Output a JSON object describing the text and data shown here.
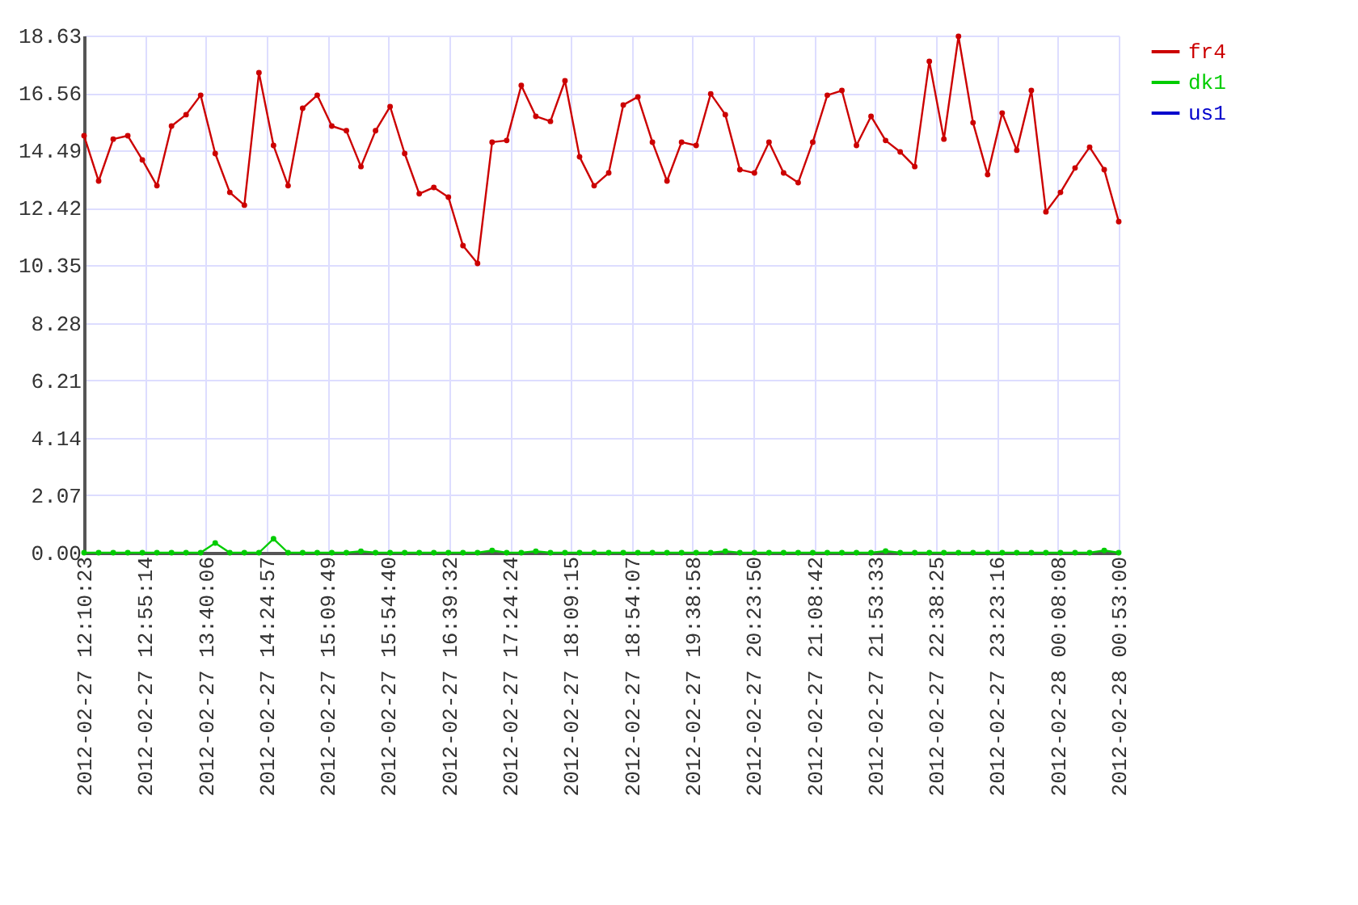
{
  "chart_data": {
    "type": "line",
    "marker": "circle",
    "line_style": "solid",
    "grid": true,
    "legend": "top right",
    "x": [
      "2012-02-27T12:10:23",
      "2012-02-27T12:21:07",
      "2012-02-27T12:31:52",
      "2012-02-27T12:42:36",
      "2012-02-27T12:53:21",
      "2012-02-27T13:04:05",
      "2012-02-27T13:14:50",
      "2012-02-27T13:25:34",
      "2012-02-27T13:36:19",
      "2012-02-27T13:47:03",
      "2012-02-27T13:57:48",
      "2012-02-27T14:08:32",
      "2012-02-27T14:19:17",
      "2012-02-27T14:30:01",
      "2012-02-27T14:40:46",
      "2012-02-27T14:51:30",
      "2012-02-27T15:02:15",
      "2012-02-27T15:12:59",
      "2012-02-27T15:23:44",
      "2012-02-27T15:34:28",
      "2012-02-27T15:45:13",
      "2012-02-27T15:55:57",
      "2012-02-27T16:06:42",
      "2012-02-27T16:17:26",
      "2012-02-27T16:28:11",
      "2012-02-27T16:38:55",
      "2012-02-27T16:49:40",
      "2012-02-27T17:00:24",
      "2012-02-27T17:11:09",
      "2012-02-27T17:21:53",
      "2012-02-27T17:32:38",
      "2012-02-27T17:43:22",
      "2012-02-27T17:54:07",
      "2012-02-27T18:04:51",
      "2012-02-27T18:15:36",
      "2012-02-27T18:26:20",
      "2012-02-27T18:37:05",
      "2012-02-27T18:47:49",
      "2012-02-27T18:58:34",
      "2012-02-27T19:09:18",
      "2012-02-27T19:20:03",
      "2012-02-27T19:30:47",
      "2012-02-27T19:41:32",
      "2012-02-27T19:52:16",
      "2012-02-27T20:03:01",
      "2012-02-27T20:13:45",
      "2012-02-27T20:24:30",
      "2012-02-27T20:35:14",
      "2012-02-27T20:45:59",
      "2012-02-27T20:56:43",
      "2012-02-27T21:07:28",
      "2012-02-27T21:18:12",
      "2012-02-27T21:28:57",
      "2012-02-27T21:39:41",
      "2012-02-27T21:50:26",
      "2012-02-27T22:01:10",
      "2012-02-27T22:11:55",
      "2012-02-27T22:22:39",
      "2012-02-27T22:33:24",
      "2012-02-27T22:44:08",
      "2012-02-27T22:54:53",
      "2012-02-27T23:05:37",
      "2012-02-27T23:16:22",
      "2012-02-27T23:27:06",
      "2012-02-27T23:37:51",
      "2012-02-27T23:48:35",
      "2012-02-27T23:59:20",
      "2012-02-28T00:10:04",
      "2012-02-28T00:20:49",
      "2012-02-28T00:31:33",
      "2012-02-28T00:42:18",
      "2012-02-28T00:53:00"
    ],
    "series": [
      {
        "name": "fr4",
        "color": "#cc0000",
        "values": [
          15.02,
          13.39,
          14.9,
          15.02,
          14.15,
          13.22,
          15.37,
          15.78,
          16.48,
          14.38,
          12.98,
          12.52,
          17.29,
          14.67,
          13.22,
          16.01,
          16.48,
          15.37,
          15.2,
          13.91,
          15.2,
          16.07,
          14.38,
          12.93,
          13.16,
          12.81,
          11.06,
          10.42,
          14.79,
          14.85,
          16.83,
          15.72,
          15.54,
          17.0,
          14.26,
          13.22,
          13.68,
          16.13,
          16.42,
          14.79,
          13.39,
          14.79,
          14.67,
          16.53,
          15.78,
          13.8,
          13.68,
          14.79,
          13.68,
          13.33,
          14.79,
          16.48,
          16.65,
          14.67,
          15.72,
          14.85,
          14.44,
          13.91,
          17.7,
          14.9,
          18.6,
          15.49,
          13.62,
          15.84,
          14.5,
          16.65,
          12.28,
          12.98,
          13.86,
          14.61,
          13.8,
          11.93
        ]
      },
      {
        "name": "dk1",
        "color": "#00cc00",
        "values": [
          0,
          0,
          0,
          0,
          0,
          0,
          0,
          0,
          0,
          0.35,
          0,
          0,
          0,
          0.5,
          0,
          0,
          0,
          0,
          0,
          0.05,
          0,
          0,
          0,
          0,
          0,
          0,
          0,
          0,
          0.08,
          0,
          0,
          0.05,
          0,
          0,
          0,
          0,
          0,
          0,
          0,
          0,
          0,
          0,
          0,
          0,
          0.05,
          0,
          0,
          0,
          0,
          0,
          0,
          0,
          0,
          0,
          0,
          0.06,
          0,
          0,
          0,
          0,
          0,
          0,
          0,
          0,
          0,
          0,
          0,
          0,
          0,
          0,
          0.08,
          0
        ]
      },
      {
        "name": "us1",
        "color": "#0000cc",
        "values": [
          null,
          null,
          null,
          null,
          null,
          null,
          null,
          null,
          null,
          null,
          null,
          null,
          null,
          null,
          null,
          null,
          null,
          null,
          null,
          null,
          null,
          null,
          null,
          null,
          null,
          null,
          null,
          null,
          null,
          null,
          null,
          null,
          null,
          null,
          null,
          null,
          null,
          null,
          null,
          null,
          null,
          null,
          null,
          null,
          null,
          null,
          null,
          null,
          null,
          null,
          null,
          null,
          null,
          null,
          null,
          null,
          null,
          null,
          null,
          null,
          null,
          null,
          null,
          null,
          null,
          null,
          null,
          null,
          null,
          null,
          null,
          null
        ]
      }
    ],
    "xlim": [
      "2012-02-27T12:10:23",
      "2012-02-28T00:53:00"
    ],
    "xticks": [
      {
        "value": "2012-02-27T12:10:23",
        "label": "2012-02-27 12:10:23"
      },
      {
        "value": "2012-02-27T12:55:14",
        "label": "2012-02-27 12:55:14"
      },
      {
        "value": "2012-02-27T13:40:06",
        "label": "2012-02-27 13:40:06"
      },
      {
        "value": "2012-02-27T14:24:57",
        "label": "2012-02-27 14:24:57"
      },
      {
        "value": "2012-02-27T15:09:49",
        "label": "2012-02-27 15:09:49"
      },
      {
        "value": "2012-02-27T15:54:40",
        "label": "2012-02-27 15:54:40"
      },
      {
        "value": "2012-02-27T16:39:32",
        "label": "2012-02-27 16:39:32"
      },
      {
        "value": "2012-02-27T17:24:24",
        "label": "2012-02-27 17:24:24"
      },
      {
        "value": "2012-02-27T18:09:15",
        "label": "2012-02-27 18:09:15"
      },
      {
        "value": "2012-02-27T18:54:07",
        "label": "2012-02-27 18:54:07"
      },
      {
        "value": "2012-02-27T19:38:58",
        "label": "2012-02-27 19:38:58"
      },
      {
        "value": "2012-02-27T20:23:50",
        "label": "2012-02-27 20:23:50"
      },
      {
        "value": "2012-02-27T21:08:42",
        "label": "2012-02-27 21:08:42"
      },
      {
        "value": "2012-02-27T21:53:33",
        "label": "2012-02-27 21:53:33"
      },
      {
        "value": "2012-02-27T22:38:25",
        "label": "2012-02-27 22:38:25"
      },
      {
        "value": "2012-02-27T23:23:16",
        "label": "2012-02-27 23:23:16"
      },
      {
        "value": "2012-02-28T00:08:08",
        "label": "2012-02-28 00:08:08"
      },
      {
        "value": "2012-02-28T00:53:00",
        "label": "2012-02-28 00:53:00"
      }
    ],
    "ylim": [
      0,
      18.63
    ],
    "yticks": [
      {
        "value": 0,
        "label": "0.00"
      },
      2.07,
      4.14,
      6.21,
      8.28,
      10.35,
      12.42,
      14.49,
      16.56,
      18.63
    ]
  }
}
